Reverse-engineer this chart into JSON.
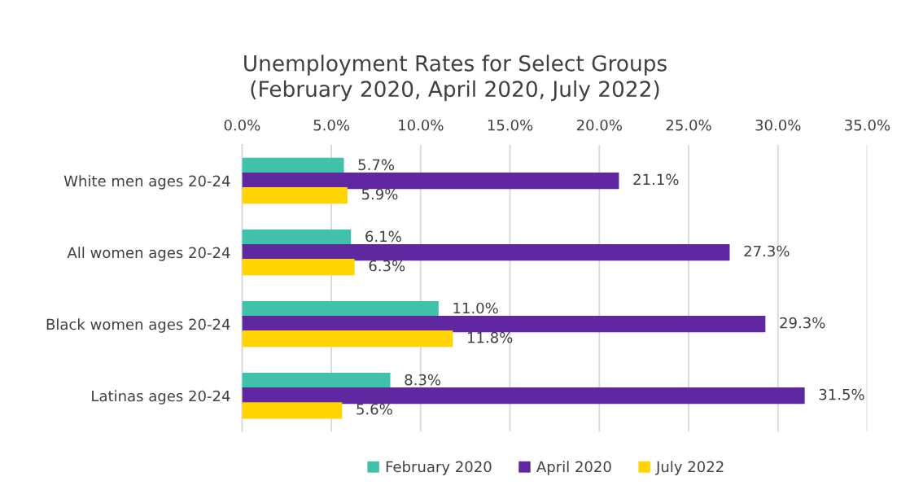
{
  "chart_data": {
    "type": "bar",
    "orientation": "horizontal",
    "title": "Unemployment Rates for Select Groups\n(February 2020, April 2020, July 2022)",
    "categories": [
      "White men ages 20-24",
      "All women ages 20-24",
      "Black women ages 20-24",
      "Latinas ages 20-24"
    ],
    "series": [
      {
        "name": "February 2020",
        "color": "#3fc1aa",
        "values": [
          5.7,
          6.1,
          11.0,
          8.3
        ],
        "value_labels": [
          "5.7%",
          "6.1%",
          "11.0%",
          "8.3%"
        ]
      },
      {
        "name": "April 2020",
        "color": "#6028a0",
        "values": [
          21.1,
          27.3,
          29.3,
          31.5
        ],
        "value_labels": [
          "21.1%",
          "27.3%",
          "29.3%",
          "31.5%"
        ]
      },
      {
        "name": "July 2022",
        "color": "#ffd400",
        "values": [
          5.9,
          6.3,
          11.8,
          5.6
        ],
        "value_labels": [
          "5.9%",
          "6.3%",
          "11.8%",
          "5.6%"
        ]
      }
    ],
    "xlim": [
      0,
      35
    ],
    "xticks": [
      {
        "value": 0,
        "label": "0.0%"
      },
      {
        "value": 5,
        "label": "5.0%"
      },
      {
        "value": 10,
        "label": "10.0%"
      },
      {
        "value": 15,
        "label": "15.0%"
      },
      {
        "value": 20,
        "label": "20.0%"
      },
      {
        "value": 25,
        "label": "25.0%"
      },
      {
        "value": 30,
        "label": "30.0%"
      },
      {
        "value": 35,
        "label": "35.0%"
      }
    ],
    "grid": "x",
    "legend": "bottom"
  }
}
